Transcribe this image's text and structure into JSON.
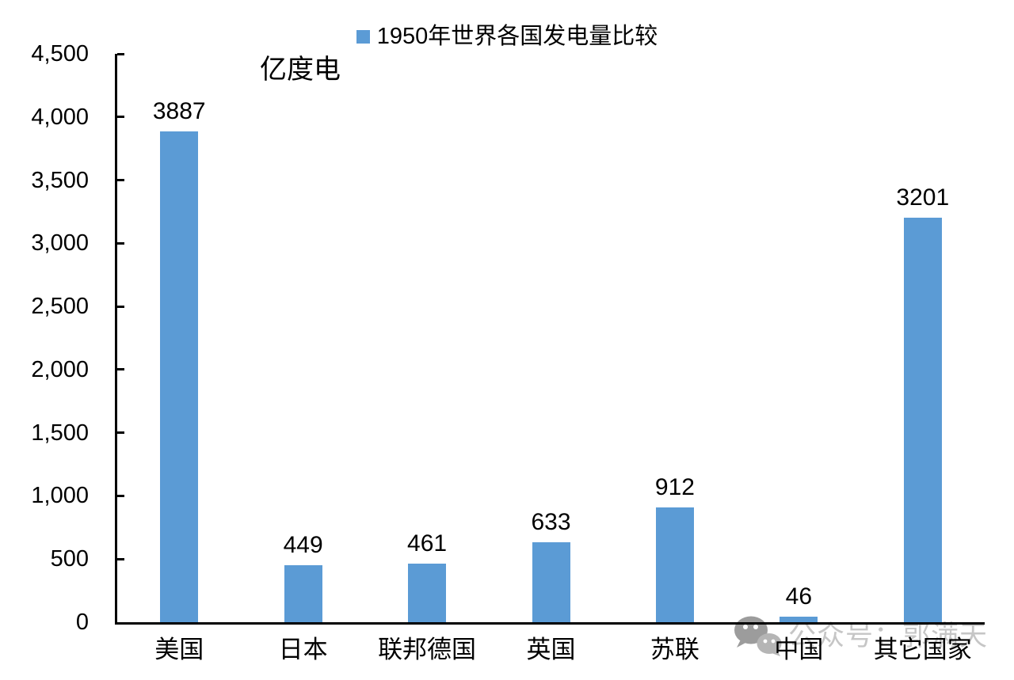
{
  "chart_data": {
    "type": "bar",
    "title": "1950年世界各国发电量比较",
    "legend": [
      "1950年世界各国发电量比较"
    ],
    "legend_position": "top-center",
    "ylabel": "亿度电",
    "xlabel": "",
    "categories": [
      "美国",
      "日本",
      "联邦德国",
      "英国",
      "苏联",
      "中国",
      "其它国家"
    ],
    "values": [
      3887,
      449,
      461,
      633,
      912,
      46,
      3201
    ],
    "data_labels": [
      "3887",
      "449",
      "461",
      "633",
      "912",
      "46",
      "3201"
    ],
    "ylim": [
      0,
      4500
    ],
    "ytick_interval": 500,
    "ytick_labels": [
      "0",
      "500",
      "1,000",
      "1,500",
      "2,000",
      "2,500",
      "3,000",
      "3,500",
      "4,000",
      "4,500"
    ],
    "grid": false,
    "data_labels_shown": true,
    "bar_color": "#5B9BD5",
    "axis_color": "#000000"
  },
  "watermark": {
    "icon": "wechat-icon",
    "text": "公众号：郭满天",
    "text_color": "#c6c6c6",
    "icon_color_dark": "#9c9c9c",
    "icon_color_light": "#b5b5b5"
  }
}
